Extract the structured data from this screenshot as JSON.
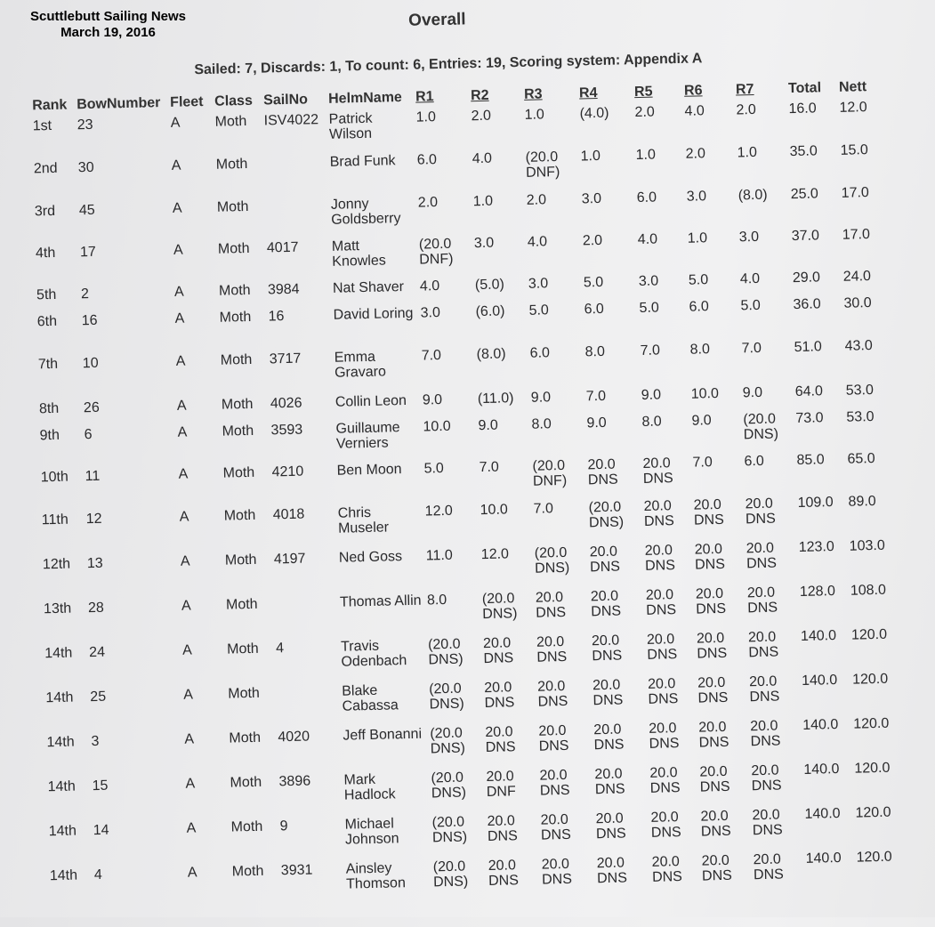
{
  "watermark": {
    "publisher": "Scuttlebutt Sailing News",
    "date": "March 19, 2016"
  },
  "title": "Overall",
  "summary": "Sailed: 7, Discards: 1, To count: 6, Entries: 19, Scoring system: Appendix A",
  "headers": [
    "Rank",
    "BowNumber",
    "Fleet",
    "Class",
    "SailNo",
    "HelmName",
    "R1",
    "R2",
    "R3",
    "R4",
    "R5",
    "R6",
    "R7",
    "Total",
    "Nett"
  ],
  "rows": [
    [
      "1st",
      "23",
      "A",
      "Moth",
      "ISV4022",
      "Patrick Wilson",
      "1.0",
      "2.0",
      "1.0",
      "(4.0)",
      "2.0",
      "4.0",
      "2.0",
      "16.0",
      "12.0"
    ],
    [
      "2nd",
      "30",
      "A",
      "Moth",
      "",
      "Brad Funk",
      "6.0",
      "4.0",
      "(20.0 DNF)",
      "1.0",
      "1.0",
      "2.0",
      "1.0",
      "35.0",
      "15.0"
    ],
    [
      "3rd",
      "45",
      "A",
      "Moth",
      "",
      "Jonny Goldsberry",
      "2.0",
      "1.0",
      "2.0",
      "3.0",
      "6.0",
      "3.0",
      "(8.0)",
      "25.0",
      "17.0"
    ],
    [
      "4th",
      "17",
      "A",
      "Moth",
      "4017",
      "Matt Knowles",
      "(20.0 DNF)",
      "3.0",
      "4.0",
      "2.0",
      "4.0",
      "1.0",
      "3.0",
      "37.0",
      "17.0"
    ],
    [
      "5th",
      "2",
      "A",
      "Moth",
      "3984",
      "Nat Shaver",
      "4.0",
      "(5.0)",
      "3.0",
      "5.0",
      "3.0",
      "5.0",
      "4.0",
      "29.0",
      "24.0"
    ],
    [
      "6th",
      "16",
      "A",
      "Moth",
      "16",
      "David Loring",
      "3.0",
      "(6.0)",
      "5.0",
      "6.0",
      "5.0",
      "6.0",
      "5.0",
      "36.0",
      "30.0"
    ],
    [
      "7th",
      "10",
      "A",
      "Moth",
      "3717",
      "Emma Gravaro",
      "7.0",
      "(8.0)",
      "6.0",
      "8.0",
      "7.0",
      "8.0",
      "7.0",
      "51.0",
      "43.0"
    ],
    [
      "8th",
      "26",
      "A",
      "Moth",
      "4026",
      "Collin Leon",
      "9.0",
      "(11.0)",
      "9.0",
      "7.0",
      "9.0",
      "10.0",
      "9.0",
      "64.0",
      "53.0"
    ],
    [
      "9th",
      "6",
      "A",
      "Moth",
      "3593",
      "Guillaume Verniers",
      "10.0",
      "9.0",
      "8.0",
      "9.0",
      "8.0",
      "9.0",
      "(20.0 DNS)",
      "73.0",
      "53.0"
    ],
    [
      "10th",
      "11",
      "A",
      "Moth",
      "4210",
      "Ben Moon",
      "5.0",
      "7.0",
      "(20.0 DNF)",
      "20.0 DNS",
      "20.0 DNS",
      "7.0",
      "6.0",
      "85.0",
      "65.0"
    ],
    [
      "11th",
      "12",
      "A",
      "Moth",
      "4018",
      "Chris Museler",
      "12.0",
      "10.0",
      "7.0",
      "(20.0 DNS)",
      "20.0 DNS",
      "20.0 DNS",
      "20.0 DNS",
      "109.0",
      "89.0"
    ],
    [
      "12th",
      "13",
      "A",
      "Moth",
      "4197",
      "Ned Goss",
      "11.0",
      "12.0",
      "(20.0 DNS)",
      "20.0 DNS",
      "20.0 DNS",
      "20.0 DNS",
      "20.0 DNS",
      "123.0",
      "103.0"
    ],
    [
      "13th",
      "28",
      "A",
      "Moth",
      "",
      "Thomas Allin",
      "8.0",
      "(20.0 DNS)",
      "20.0 DNS",
      "20.0 DNS",
      "20.0 DNS",
      "20.0 DNS",
      "20.0 DNS",
      "128.0",
      "108.0"
    ],
    [
      "14th",
      "24",
      "A",
      "Moth",
      "4",
      "Travis Odenbach",
      "(20.0 DNS)",
      "20.0 DNS",
      "20.0 DNS",
      "20.0 DNS",
      "20.0 DNS",
      "20.0 DNS",
      "20.0 DNS",
      "140.0",
      "120.0"
    ],
    [
      "14th",
      "25",
      "A",
      "Moth",
      "",
      "Blake Cabassa",
      "(20.0 DNS)",
      "20.0 DNS",
      "20.0 DNS",
      "20.0 DNS",
      "20.0 DNS",
      "20.0 DNS",
      "20.0 DNS",
      "140.0",
      "120.0"
    ],
    [
      "14th",
      "3",
      "A",
      "Moth",
      "4020",
      "Jeff Bonanni",
      "(20.0 DNS)",
      "20.0 DNS",
      "20.0 DNS",
      "20.0 DNS",
      "20.0 DNS",
      "20.0 DNS",
      "20.0 DNS",
      "140.0",
      "120.0"
    ],
    [
      "14th",
      "15",
      "A",
      "Moth",
      "3896",
      "Mark Hadlock",
      "(20.0 DNS)",
      "20.0 DNF",
      "20.0 DNS",
      "20.0 DNS",
      "20.0 DNS",
      "20.0 DNS",
      "20.0 DNS",
      "140.0",
      "120.0"
    ],
    [
      "14th",
      "14",
      "A",
      "Moth",
      "9",
      "Michael Johnson",
      "(20.0 DNS)",
      "20.0 DNS",
      "20.0 DNS",
      "20.0 DNS",
      "20.0 DNS",
      "20.0 DNS",
      "20.0 DNS",
      "140.0",
      "120.0"
    ],
    [
      "14th",
      "4",
      "A",
      "Moth",
      "3931",
      "Ainsley Thomson",
      "(20.0 DNS)",
      "20.0 DNS",
      "20.0 DNS",
      "20.0 DNS",
      "20.0 DNS",
      "20.0 DNS",
      "20.0 DNS",
      "140.0",
      "120.0"
    ]
  ]
}
